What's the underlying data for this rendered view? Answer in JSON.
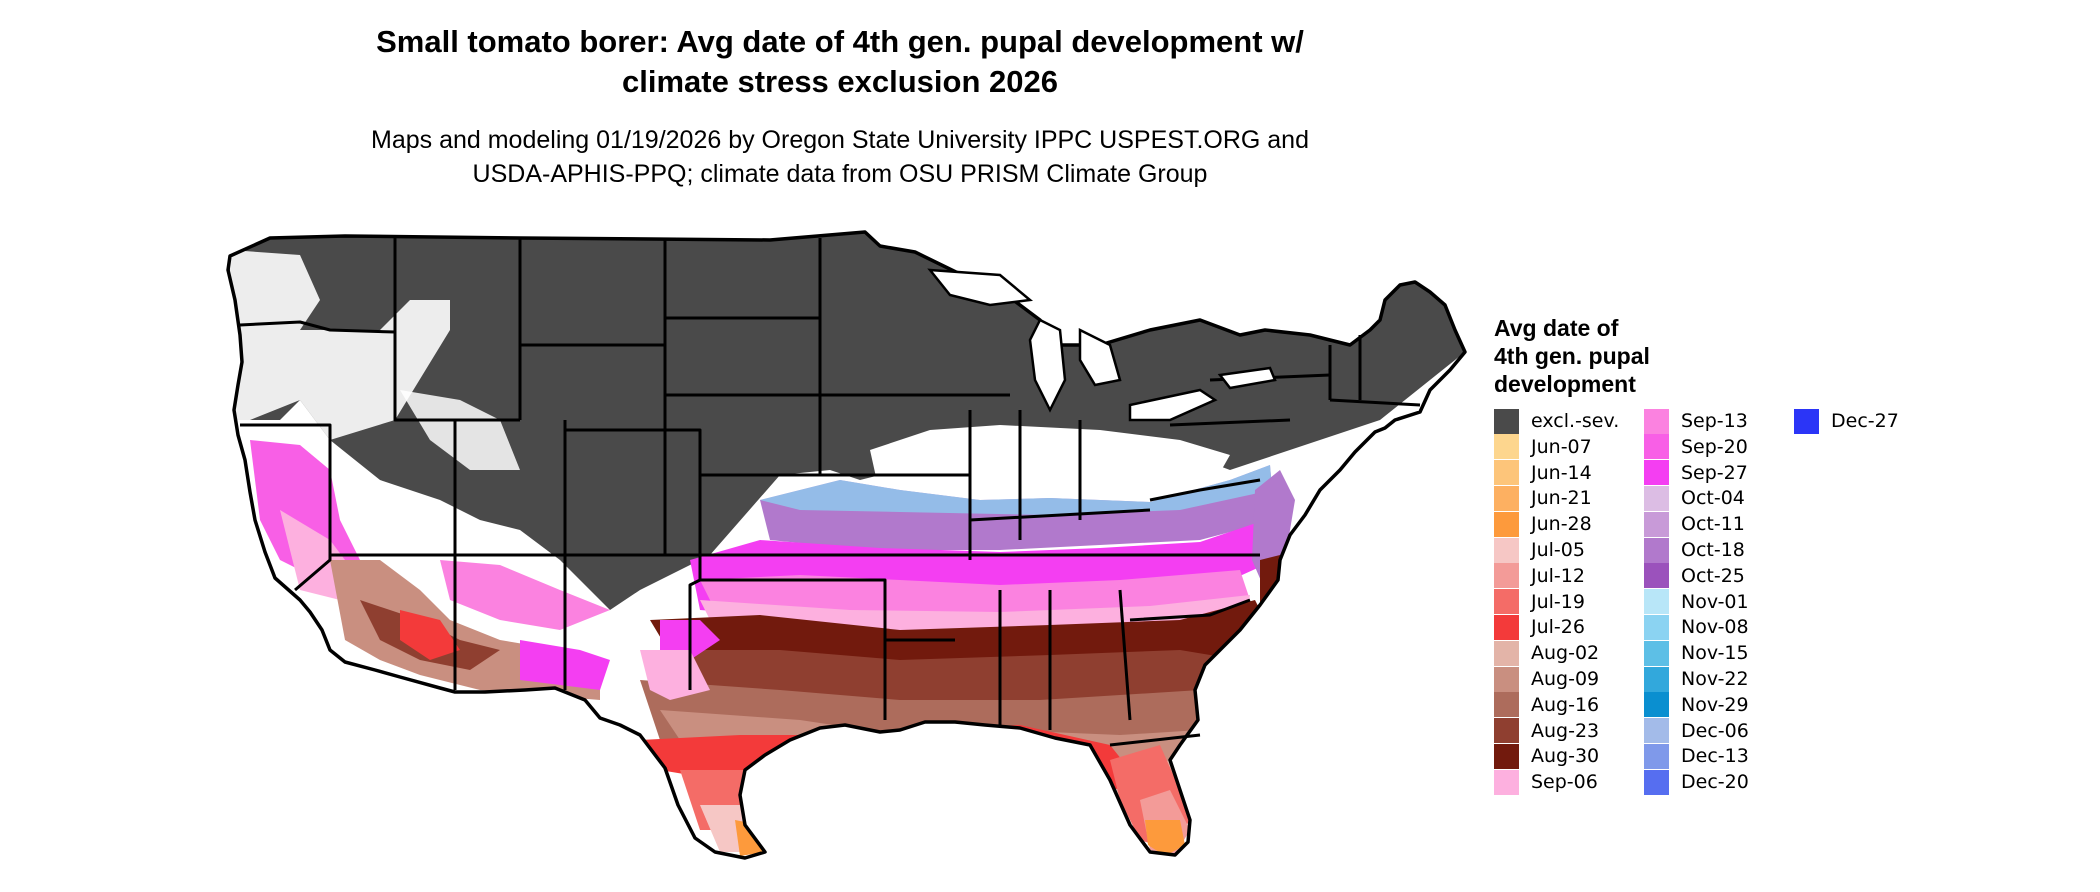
{
  "title": {
    "line1": "Small tomato borer: Avg date of 4th gen. pupal development w/",
    "line2": "climate stress exclusion 2026"
  },
  "subtitle": {
    "line1": "Maps and modeling 01/19/2026 by Oregon State University IPPC USPEST.ORG and",
    "line2": "USDA-APHIS-PPQ; climate data from OSU PRISM Climate Group"
  },
  "legend": {
    "title_lines": [
      "Avg date of",
      "4th gen. pupal",
      "development"
    ],
    "items": [
      {
        "label": "excl.-sev.",
        "color": "#4a4a4a"
      },
      {
        "label": "Jun-07",
        "color": "#fdd68e"
      },
      {
        "label": "Jun-14",
        "color": "#fdc57a"
      },
      {
        "label": "Jun-21",
        "color": "#fdb061"
      },
      {
        "label": "Jun-28",
        "color": "#fd9a3c"
      },
      {
        "label": "Jul-05",
        "color": "#f6c7c5"
      },
      {
        "label": "Jul-12",
        "color": "#f39b98"
      },
      {
        "label": "Jul-19",
        "color": "#f46c67"
      },
      {
        "label": "Jul-26",
        "color": "#f33a3a"
      },
      {
        "label": "Aug-02",
        "color": "#e3b4a8"
      },
      {
        "label": "Aug-09",
        "color": "#c98f80"
      },
      {
        "label": "Aug-16",
        "color": "#ad6c5c"
      },
      {
        "label": "Aug-23",
        "color": "#8f3f30"
      },
      {
        "label": "Aug-30",
        "color": "#721a0d"
      },
      {
        "label": "Sep-06",
        "color": "#fdb0df"
      },
      {
        "label": "Sep-13",
        "color": "#fb82e0"
      },
      {
        "label": "Sep-20",
        "color": "#f85fe6"
      },
      {
        "label": "Sep-27",
        "color": "#f43ef2"
      },
      {
        "label": "Oct-04",
        "color": "#dcbde4"
      },
      {
        "label": "Oct-11",
        "color": "#c89ad8"
      },
      {
        "label": "Oct-18",
        "color": "#b179cc"
      },
      {
        "label": "Oct-25",
        "color": "#9b52bc"
      },
      {
        "label": "Nov-01",
        "color": "#b8e6f8"
      },
      {
        "label": "Nov-08",
        "color": "#8bd3f2"
      },
      {
        "label": "Nov-15",
        "color": "#5dbfe6"
      },
      {
        "label": "Nov-22",
        "color": "#32a8dc"
      },
      {
        "label": "Nov-29",
        "color": "#0a8fd0"
      },
      {
        "label": "Dec-06",
        "color": "#a3bbe9"
      },
      {
        "label": "Dec-13",
        "color": "#7f99ea"
      },
      {
        "label": "Dec-20",
        "color": "#566ef0"
      },
      {
        "label": "Dec-27",
        "color": "#2b35f7"
      }
    ]
  }
}
